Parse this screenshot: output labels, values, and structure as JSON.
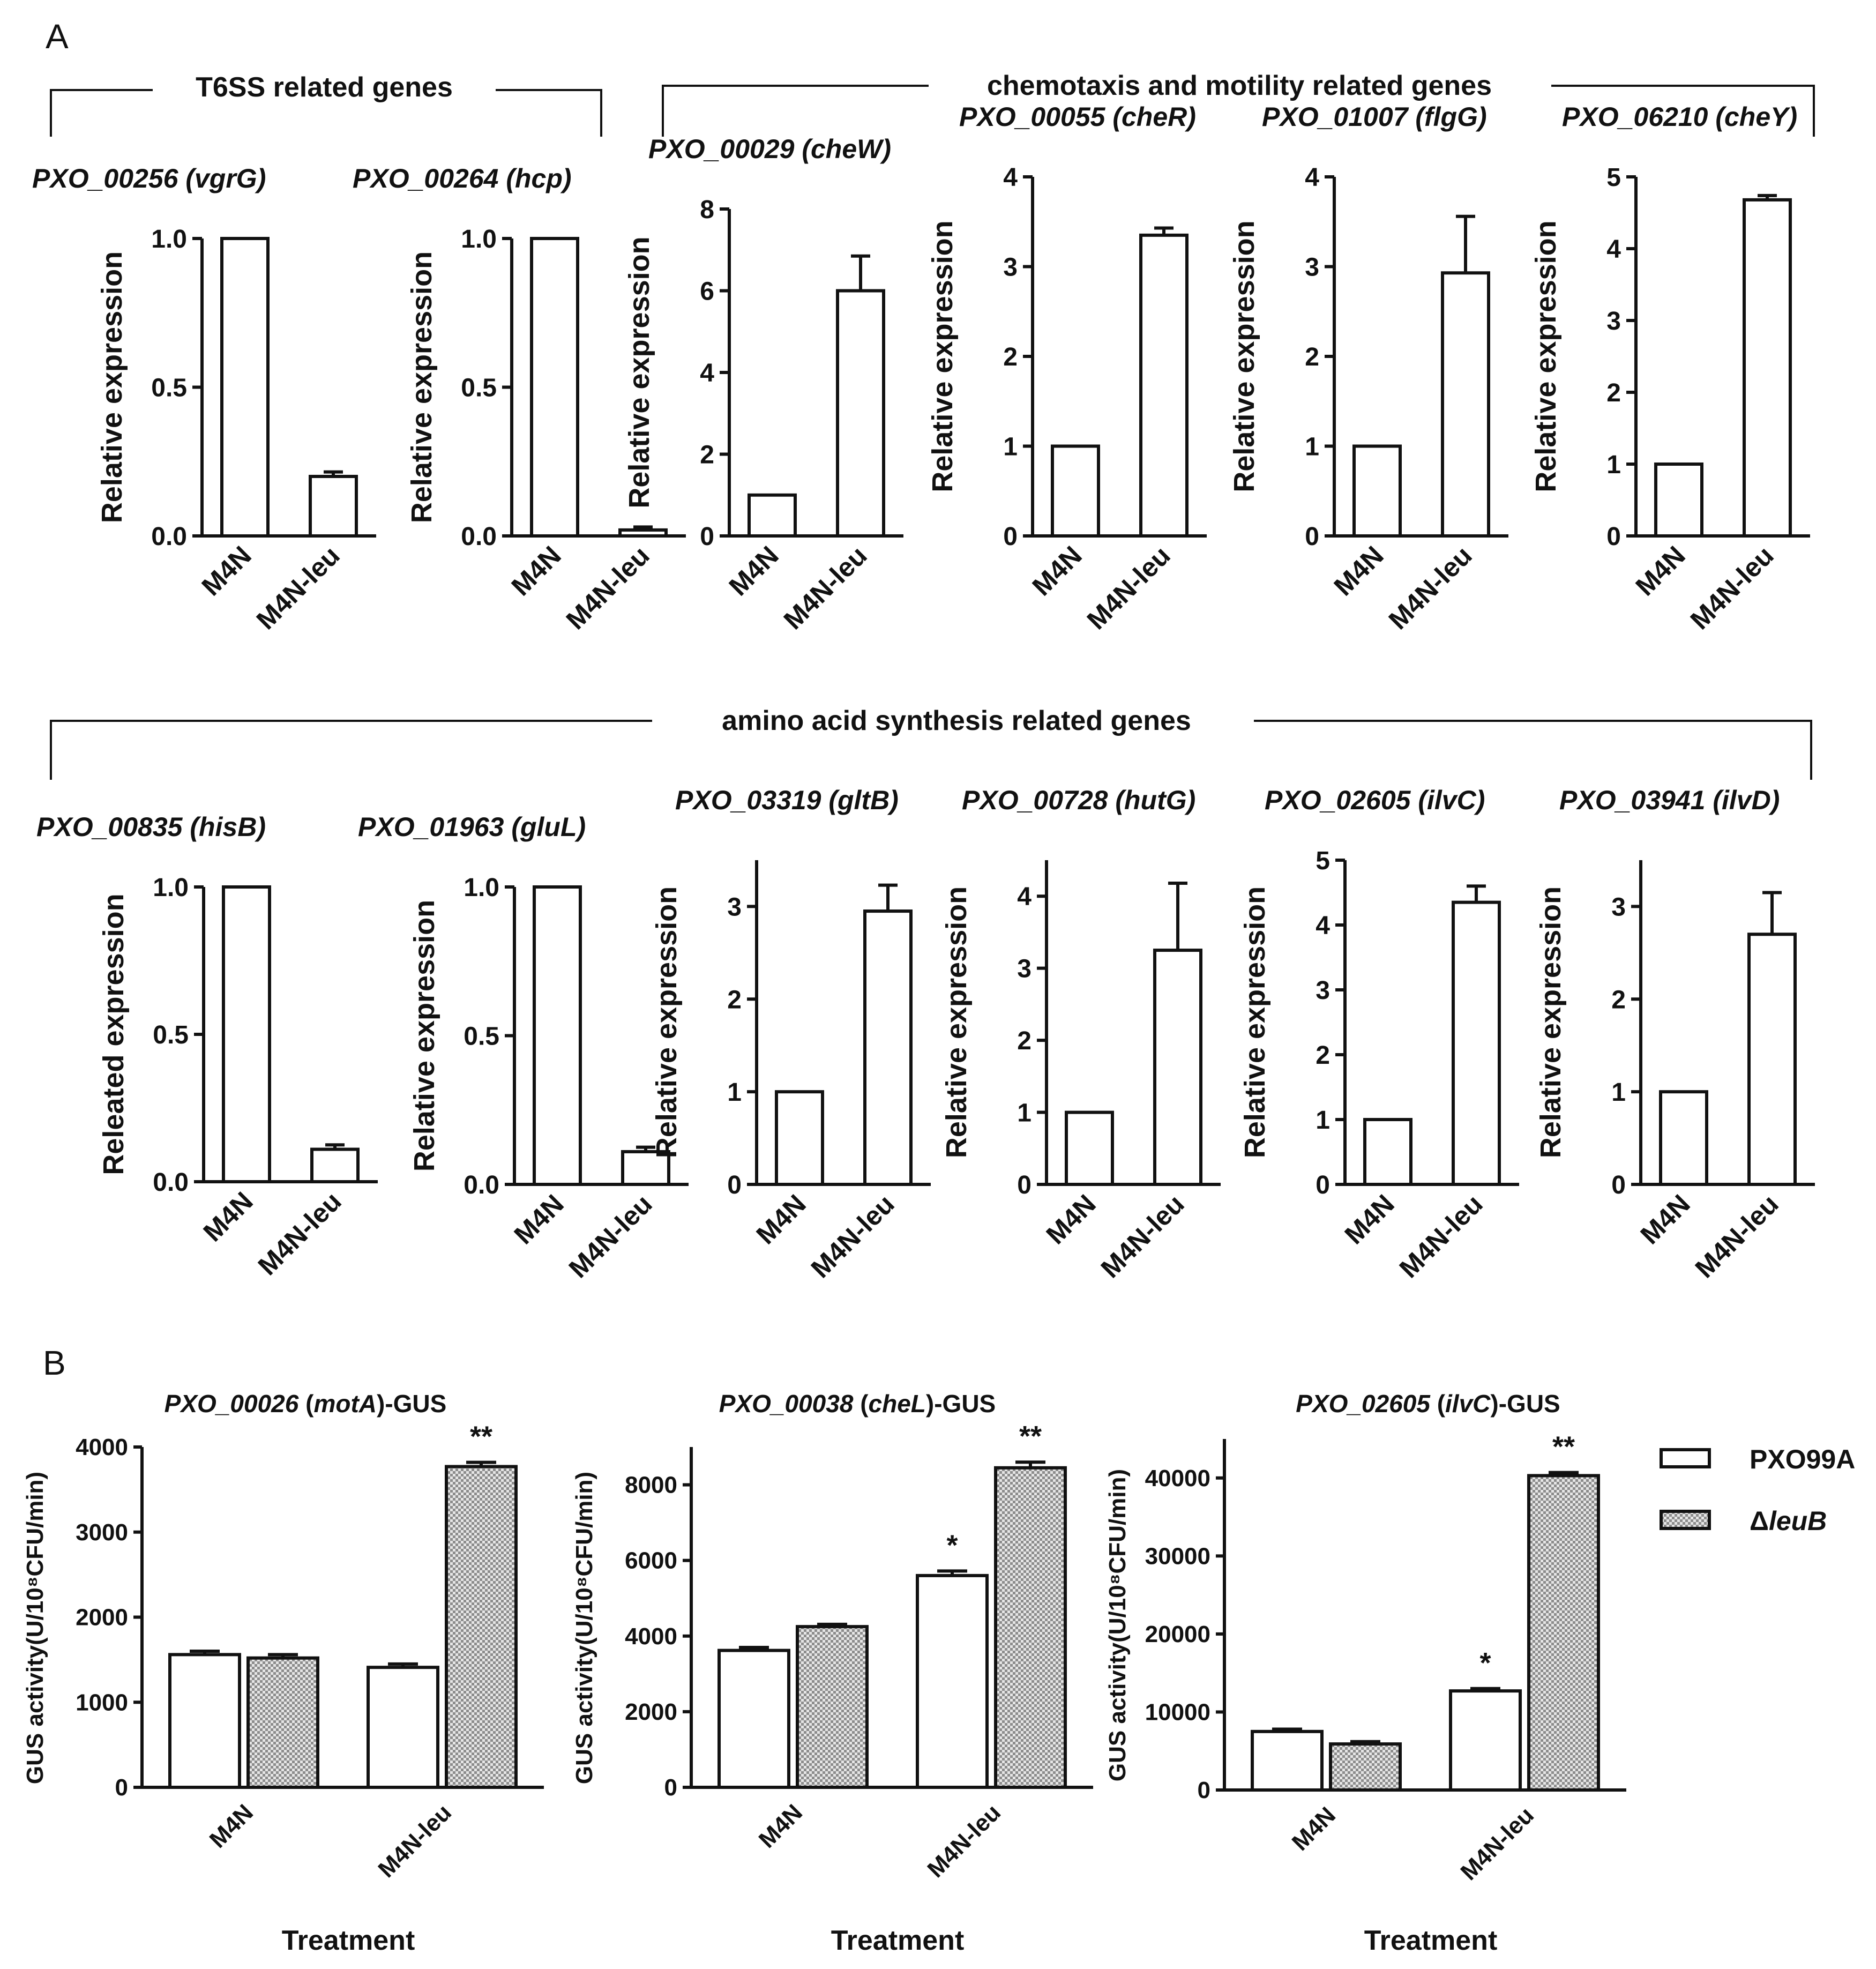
{
  "figure": {
    "panel_a_letter": "A",
    "panel_b_letter": "B",
    "groups": [
      {
        "label": "T6SS related genes"
      },
      {
        "label": "chemotaxis and motility related genes"
      },
      {
        "label": "amino acid synthesis related genes"
      }
    ],
    "colors": {
      "ink": "#111111",
      "bar_fill": "#ffffff",
      "hatch_light": "#e6e6e6",
      "hatch_dark": "#8c8c8c"
    }
  },
  "chart_data": [
    {
      "type": "bar",
      "panel": "A",
      "title_id": "PXO_00256",
      "title_gene": "(vgrG)",
      "ylabel": "Relative expression",
      "categories": [
        "M4N",
        "M4N-leu"
      ],
      "values": [
        1.0,
        0.2
      ],
      "errors": [
        0,
        0.015
      ],
      "ylim": [
        0,
        1.0
      ],
      "yticks": [
        0,
        0.5,
        1.0
      ],
      "ytick_labels": [
        "0.0",
        "0.5",
        "1.0"
      ]
    },
    {
      "type": "bar",
      "panel": "A",
      "title_id": "PXO_00264",
      "title_gene": "(hcp)",
      "ylabel": "Relative expression",
      "categories": [
        "M4N",
        "M4N-leu"
      ],
      "values": [
        1.0,
        0.02
      ],
      "errors": [
        0,
        0.01
      ],
      "ylim": [
        0,
        1.0
      ],
      "yticks": [
        0,
        0.5,
        1.0
      ],
      "ytick_labels": [
        "0.0",
        "0.5",
        "1.0"
      ]
    },
    {
      "type": "bar",
      "panel": "A",
      "title_id": "PXO_00029",
      "title_gene": "(cheW)",
      "ylabel": "Relative expression",
      "categories": [
        "M4N",
        "M4N-leu"
      ],
      "values": [
        1,
        6.0
      ],
      "errors": [
        0,
        0.85
      ],
      "ylim": [
        0,
        8
      ],
      "yticks": [
        0,
        2,
        4,
        6,
        8
      ],
      "ytick_labels": [
        "0",
        "2",
        "4",
        "6",
        "8"
      ]
    },
    {
      "type": "bar",
      "panel": "A",
      "title_id": "PXO_00055",
      "title_gene": "(cheR)",
      "ylabel": "Relative expression",
      "categories": [
        "M4N",
        "M4N-leu"
      ],
      "values": [
        1,
        3.35
      ],
      "errors": [
        0,
        0.08
      ],
      "ylim": [
        0,
        4
      ],
      "yticks": [
        0,
        1,
        2,
        3,
        4
      ],
      "ytick_labels": [
        "0",
        "1",
        "2",
        "3",
        "4"
      ]
    },
    {
      "type": "bar",
      "panel": "A",
      "title_id": "PXO_01007",
      "title_gene": "(flgG)",
      "ylabel": "Relative expression",
      "categories": [
        "M4N",
        "M4N-leu"
      ],
      "values": [
        1,
        2.93
      ],
      "errors": [
        0,
        0.63
      ],
      "ylim": [
        0,
        4
      ],
      "yticks": [
        0,
        1,
        2,
        3,
        4
      ],
      "ytick_labels": [
        "0",
        "1",
        "2",
        "3",
        "4"
      ]
    },
    {
      "type": "bar",
      "panel": "A",
      "title_id": "PXO_06210",
      "title_gene": "(cheY)",
      "ylabel": "Relative expression",
      "categories": [
        "M4N",
        "M4N-leu"
      ],
      "values": [
        1,
        4.68
      ],
      "errors": [
        0,
        0.06
      ],
      "ylim": [
        0,
        5
      ],
      "yticks": [
        0,
        1,
        2,
        3,
        4,
        5
      ],
      "ytick_labels": [
        "0",
        "1",
        "2",
        "3",
        "4",
        "5"
      ]
    },
    {
      "type": "bar",
      "panel": "A",
      "title_id": "PXO_00835",
      "title_gene": "(hisB)",
      "ylabel": "Releated expression",
      "categories": [
        "M4N",
        "M4N-leu"
      ],
      "values": [
        1.0,
        0.11
      ],
      "errors": [
        0,
        0.015
      ],
      "ylim": [
        0,
        1.0
      ],
      "yticks": [
        0,
        0.5,
        1.0
      ],
      "ytick_labels": [
        "0.0",
        "0.5",
        "1.0"
      ]
    },
    {
      "type": "bar",
      "panel": "A",
      "title_id": "PXO_01963",
      "title_gene": "(gluL)",
      "ylabel": "Relative expression",
      "categories": [
        "M4N",
        "M4N-leu"
      ],
      "values": [
        1.0,
        0.11
      ],
      "errors": [
        0,
        0.015
      ],
      "ylim": [
        0,
        1.0
      ],
      "yticks": [
        0,
        0.5,
        1.0
      ],
      "ytick_labels": [
        "0.0",
        "0.5",
        "1.0"
      ]
    },
    {
      "type": "bar",
      "panel": "A",
      "title_id": "PXO_03319",
      "title_gene": "(gltB)",
      "ylabel": "Relative expression",
      "categories": [
        "M4N",
        "M4N-leu"
      ],
      "values": [
        1,
        2.95
      ],
      "errors": [
        0,
        0.28
      ],
      "ylim": [
        0,
        3.5
      ],
      "yticks": [
        0,
        1,
        2,
        3
      ],
      "ytick_labels": [
        "0",
        "1",
        "2",
        "3"
      ]
    },
    {
      "type": "bar",
      "panel": "A",
      "title_id": "PXO_00728",
      "title_gene": "(hutG)",
      "ylabel": "Relative expression",
      "categories": [
        "M4N",
        "M4N-leu"
      ],
      "values": [
        1,
        3.25
      ],
      "errors": [
        0,
        0.93
      ],
      "ylim": [
        0,
        4.5
      ],
      "yticks": [
        0,
        1,
        2,
        3,
        4
      ],
      "ytick_labels": [
        "0",
        "1",
        "2",
        "3",
        "4"
      ]
    },
    {
      "type": "bar",
      "panel": "A",
      "title_id": "PXO_02605",
      "title_gene": "(ilvC)",
      "ylabel": "Relative expression",
      "categories": [
        "M4N",
        "M4N-leu"
      ],
      "values": [
        1,
        4.35
      ],
      "errors": [
        0,
        0.25
      ],
      "ylim": [
        0,
        5
      ],
      "yticks": [
        0,
        1,
        2,
        3,
        4,
        5
      ],
      "ytick_labels": [
        "0",
        "1",
        "2",
        "3",
        "4",
        "5"
      ]
    },
    {
      "type": "bar",
      "panel": "A",
      "title_id": "PXO_03941",
      "title_gene": "(ilvD)",
      "ylabel": "Relative expression",
      "categories": [
        "M4N",
        "M4N-leu"
      ],
      "values": [
        1,
        2.7
      ],
      "errors": [
        0,
        0.45
      ],
      "ylim": [
        0,
        3.5
      ],
      "yticks": [
        0,
        1,
        2,
        3
      ],
      "ytick_labels": [
        "0",
        "1",
        "2",
        "3"
      ]
    },
    {
      "type": "grouped-bar",
      "panel": "B",
      "title_id": "PXO_00026",
      "title_gene": "motA",
      "title_suffix": "-GUS",
      "ylabel": "GUS activity(U/10⁸CFU/min)",
      "xlabel": "Treatment",
      "categories": [
        "M4N",
        "M4N-leu"
      ],
      "ylim": [
        0,
        4000
      ],
      "yticks": [
        0,
        1000,
        2000,
        3000,
        4000
      ],
      "ytick_labels": [
        "0",
        "1000",
        "2000",
        "3000",
        "4000"
      ],
      "series": [
        {
          "name": "PXO99A",
          "values": [
            1560,
            1410
          ],
          "errors": [
            40,
            40
          ],
          "marks": [
            "",
            ""
          ]
        },
        {
          "name": "ΔleuB",
          "values": [
            1520,
            3770
          ],
          "errors": [
            40,
            50
          ],
          "marks": [
            "",
            "**"
          ]
        }
      ]
    },
    {
      "type": "grouped-bar",
      "panel": "B",
      "title_id": "PXO_00038",
      "title_gene": "cheL",
      "title_suffix": "-GUS",
      "ylabel": "GUS activity(U/10⁸CFU/min)",
      "xlabel": "Treatment",
      "categories": [
        "M4N",
        "M4N-leu"
      ],
      "ylim": [
        0,
        9000
      ],
      "yticks": [
        0,
        2000,
        4000,
        6000,
        8000
      ],
      "ytick_labels": [
        "0",
        "2000",
        "4000",
        "6000",
        "8000"
      ],
      "series": [
        {
          "name": "PXO99A",
          "values": [
            3620,
            5600
          ],
          "errors": [
            80,
            120
          ],
          "marks": [
            "",
            "*"
          ]
        },
        {
          "name": "ΔleuB",
          "values": [
            4250,
            8450
          ],
          "errors": [
            60,
            150
          ],
          "marks": [
            "",
            "**"
          ]
        }
      ]
    },
    {
      "type": "grouped-bar",
      "panel": "B",
      "title_id": "PXO_02605",
      "title_gene": "ilvC",
      "title_suffix": "-GUS",
      "ylabel": "GUS activity(U/10⁸CFU/min)",
      "xlabel": "Treatment",
      "categories": [
        "M4N",
        "M4N-leu"
      ],
      "ylim": [
        0,
        45000
      ],
      "yticks": [
        0,
        10000,
        20000,
        30000,
        40000
      ],
      "ytick_labels": [
        "0",
        "10000",
        "20000",
        "30000",
        "40000"
      ],
      "series": [
        {
          "name": "PXO99A",
          "values": [
            7500,
            12700
          ],
          "errors": [
            300,
            300
          ],
          "marks": [
            "",
            "*"
          ]
        },
        {
          "name": "ΔleuB",
          "values": [
            5900,
            40300
          ],
          "errors": [
            300,
            400
          ],
          "marks": [
            "",
            "**"
          ]
        }
      ]
    }
  ],
  "legend": [
    {
      "name": "PXO99A",
      "pattern": "white"
    },
    {
      "name": "ΔleuB",
      "name_prefix": "Δ",
      "name_italic": "leuB",
      "pattern": "checker"
    }
  ]
}
